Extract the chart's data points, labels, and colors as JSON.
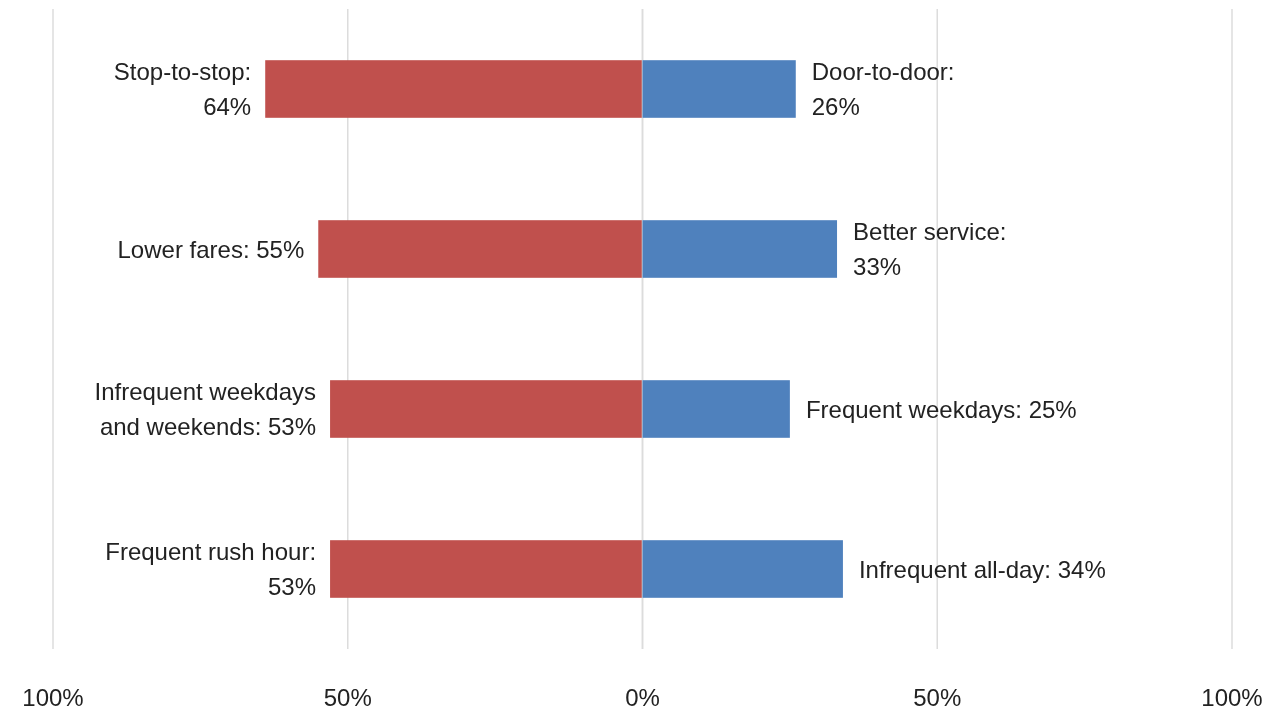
{
  "chart_data": [
    {
      "type": "bar",
      "orientation": "horizontal",
      "categories": [
        null,
        null,
        null,
        null
      ],
      "series": [
        {
          "color": "#c0504d",
          "values": [
            64,
            55,
            53,
            53
          ],
          "value_labels": [
            "Stop-to-stop:\n64%",
            "Lower fares: 55%",
            "Infrequent weekdays\nand weekends: 53%",
            "Frequent rush hour:\n53%"
          ]
        }
      ],
      "xlim": [
        100,
        0
      ],
      "xticks": [
        {
          "value": 100,
          "label": "100%"
        },
        {
          "value": 50,
          "label": "50%"
        },
        {
          "value": 0,
          "label": "0%"
        }
      ],
      "grid": "x"
    },
    {
      "type": "bar",
      "orientation": "horizontal",
      "categories": [
        null,
        null,
        null,
        null
      ],
      "series": [
        {
          "color": "#4f81bd",
          "values": [
            26,
            33,
            25,
            34
          ],
          "value_labels": [
            "Door-to-door:\n26%",
            "Better service:\n33%",
            "Frequent weekdays: 25%",
            "Infrequent all-day: 34%"
          ]
        }
      ],
      "xlim": [
        0,
        100
      ],
      "xticks": [
        {
          "value": 0,
          "label": null
        },
        {
          "value": 50,
          "label": "50%"
        },
        {
          "value": 100,
          "label": "100%"
        }
      ],
      "grid": "x"
    }
  ]
}
